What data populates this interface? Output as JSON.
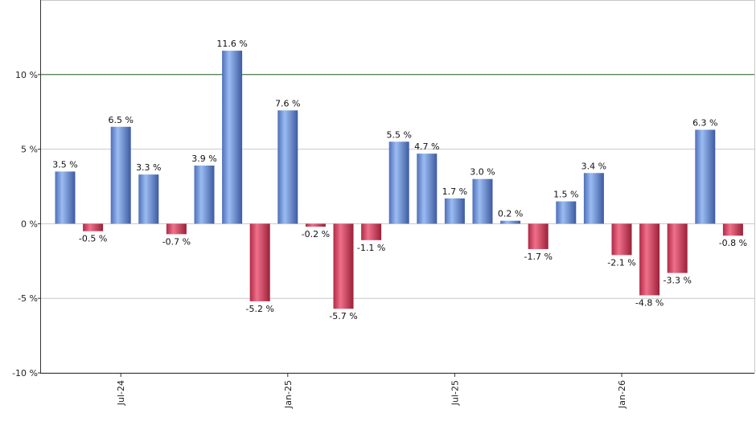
{
  "chart_data": {
    "type": "bar",
    "title": "",
    "xlabel": "",
    "ylabel": "",
    "ylim": [
      -10,
      15
    ],
    "y_ticks": [
      {
        "value": 10,
        "label": "10 %"
      },
      {
        "value": 5,
        "label": "5 %"
      },
      {
        "value": 0,
        "label": "0 %"
      },
      {
        "value": -5,
        "label": "-5 %"
      },
      {
        "value": -10,
        "label": "-10 %"
      }
    ],
    "x_ticks": [
      {
        "index": 2,
        "label": "Jul-24"
      },
      {
        "index": 8,
        "label": "Jan-25"
      },
      {
        "index": 14,
        "label": "Jul-25"
      },
      {
        "index": 20,
        "label": "Jan-26"
      }
    ],
    "reference_line": {
      "value": 10,
      "color": "#2e6b2e"
    },
    "grid": true,
    "colors": {
      "positive": "#6f94d8",
      "negative": "#d4445f"
    },
    "values": [
      3.5,
      -0.5,
      6.5,
      3.3,
      -0.7,
      3.9,
      11.6,
      -5.2,
      7.6,
      -0.2,
      -5.7,
      -1.1,
      5.5,
      4.7,
      1.7,
      3.0,
      0.2,
      -1.7,
      1.5,
      3.4,
      -2.1,
      -4.8,
      -3.3,
      6.3,
      -0.8
    ],
    "labels": [
      "3.5 %",
      "-0.5 %",
      "6.5 %",
      "3.3 %",
      "-0.7 %",
      "3.9 %",
      "11.6 %",
      "-5.2 %",
      "7.6 %",
      "-0.2 %",
      "-5.7 %",
      "-1.1 %",
      "5.5 %",
      "4.7 %",
      "1.7 %",
      "3.0 %",
      "0.2 %",
      "-1.7 %",
      "1.5 %",
      "3.4 %",
      "-2.1 %",
      "-4.8 %",
      "-3.3 %",
      "6.3 %",
      "-0.8 %"
    ]
  }
}
